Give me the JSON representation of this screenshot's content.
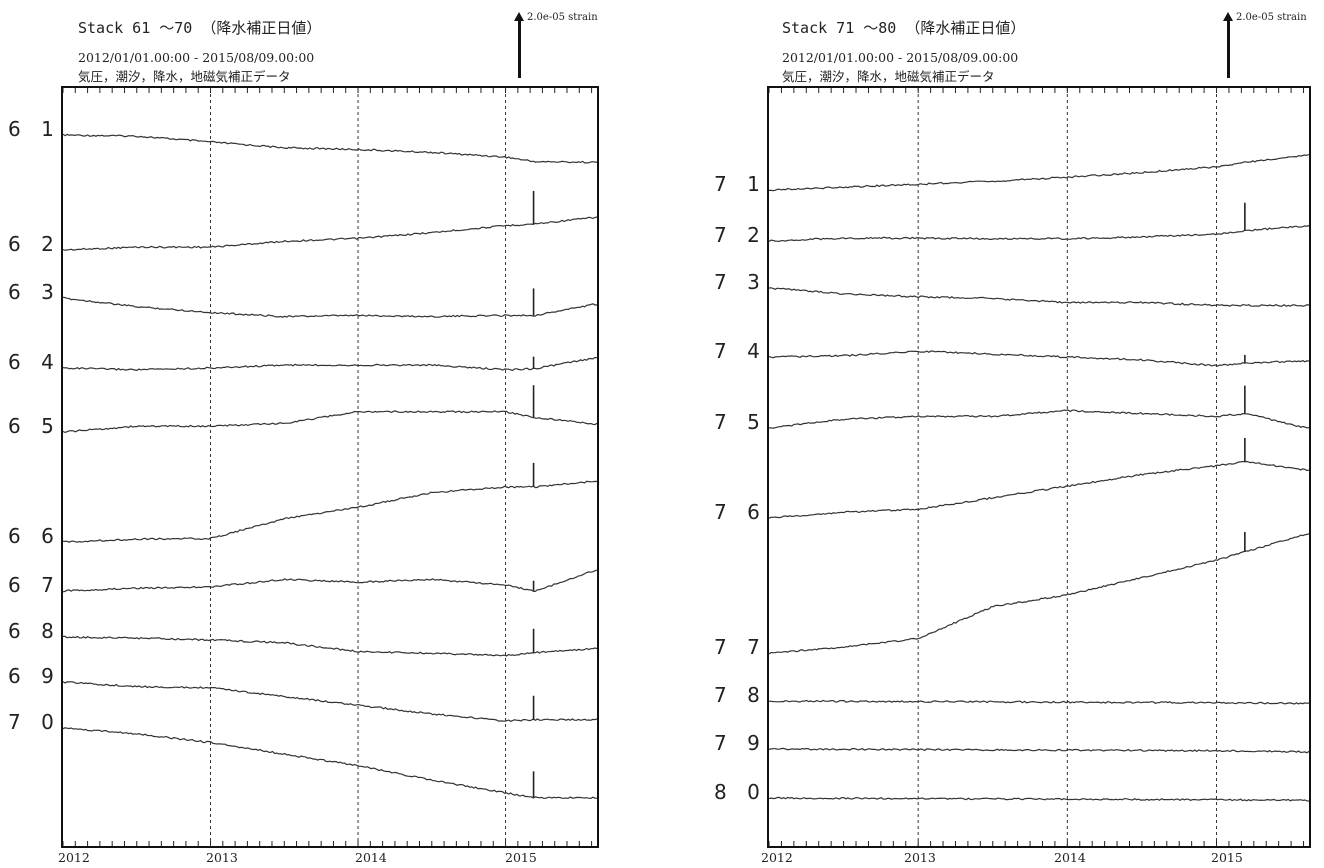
{
  "panels": [
    {
      "title": "Stack 61 ～70 （降水補正日値）",
      "period": "2012/01/01.00:00 - 2015/08/09.00:00",
      "corrections": "気圧，潮汐，降水，地磁気補正データ",
      "scale_label": "2.0e-05 strain",
      "years": [
        "2012",
        "2013",
        "2014",
        "2015"
      ]
    },
    {
      "title": "Stack 71 ～80 （降水補正日値）",
      "period": "2012/01/01.00:00 - 2015/08/09.00:00",
      "corrections": "気圧，潮汐，降水，地磁気補正データ",
      "scale_label": "2.0e-05 strain",
      "years": [
        "2012",
        "2013",
        "2014",
        "2015"
      ]
    }
  ],
  "chart_data": [
    {
      "type": "line",
      "title": "Stack 61 ～70 （降水補正日値）",
      "x_range": [
        "2012-01-01",
        "2015-08-09"
      ],
      "x_ticks": [
        "2012",
        "2013",
        "2014",
        "2015"
      ],
      "grid": "vertical dashed lines at year boundaries",
      "scale_bar": "2.0e-05 strain",
      "y_units": "trace offset in scale-bar units (1.0 = 2.0e-05 strain); traces offset vertically",
      "series": [
        {
          "name": "6 1",
          "x": [
            2012.0,
            2012.5,
            2013.0,
            2013.5,
            2014.0,
            2014.5,
            2015.0,
            2015.2,
            2015.6
          ],
          "y": [
            0.0,
            -0.02,
            -0.12,
            -0.22,
            -0.25,
            -0.3,
            -0.38,
            -0.46,
            -0.47
          ]
        },
        {
          "name": "6 2",
          "x": [
            2012.0,
            2012.5,
            2013.0,
            2013.5,
            2014.0,
            2014.5,
            2015.0,
            2015.2,
            2015.6
          ],
          "y": [
            0.0,
            0.05,
            0.05,
            0.15,
            0.2,
            0.3,
            0.42,
            0.45,
            0.56
          ]
        },
        {
          "name": "6 3",
          "x": [
            2012.0,
            2012.5,
            2013.0,
            2013.5,
            2014.0,
            2014.5,
            2015.0,
            2015.2,
            2015.6
          ],
          "y": [
            0.0,
            -0.15,
            -0.25,
            -0.32,
            -0.3,
            -0.32,
            -0.3,
            -0.3,
            -0.11
          ]
        },
        {
          "name": "6 4",
          "x": [
            2012.0,
            2012.5,
            2013.0,
            2013.5,
            2014.0,
            2014.5,
            2015.0,
            2015.2,
            2015.6
          ],
          "y": [
            0.0,
            -0.03,
            0.0,
            0.05,
            0.05,
            0.05,
            -0.03,
            -0.01,
            0.17
          ]
        },
        {
          "name": "6 5",
          "x": [
            2012.0,
            2012.5,
            2013.0,
            2013.5,
            2014.0,
            2014.5,
            2015.0,
            2015.2,
            2015.6
          ],
          "y": [
            0.0,
            0.1,
            0.1,
            0.15,
            0.35,
            0.35,
            0.35,
            0.25,
            0.14
          ]
        },
        {
          "name": "6 6",
          "x": [
            2012.0,
            2012.5,
            2013.0,
            2013.5,
            2014.0,
            2014.5,
            2015.0,
            2015.2,
            2015.6
          ],
          "y": [
            0.0,
            0.05,
            0.06,
            0.4,
            0.6,
            0.85,
            0.95,
            0.95,
            1.05
          ]
        },
        {
          "name": "6 7",
          "x": [
            2012.0,
            2012.5,
            2013.0,
            2013.5,
            2014.0,
            2014.5,
            2015.0,
            2015.2,
            2015.6
          ],
          "y": [
            0.0,
            0.05,
            0.07,
            0.2,
            0.15,
            0.2,
            0.1,
            0.0,
            0.35
          ]
        },
        {
          "name": "6 8",
          "x": [
            2012.0,
            2012.5,
            2013.0,
            2013.5,
            2014.0,
            2014.5,
            2015.0,
            2015.2,
            2015.6
          ],
          "y": [
            0.0,
            -0.02,
            -0.05,
            -0.1,
            -0.25,
            -0.28,
            -0.32,
            -0.27,
            -0.2
          ]
        },
        {
          "name": "6 9",
          "x": [
            2012.0,
            2012.5,
            2013.0,
            2013.5,
            2014.0,
            2014.5,
            2015.0,
            2015.2,
            2015.6
          ],
          "y": [
            0.0,
            -0.08,
            -0.1,
            -0.25,
            -0.4,
            -0.55,
            -0.67,
            -0.65,
            -0.65
          ]
        },
        {
          "name": "7 0",
          "x": [
            2012.0,
            2012.5,
            2013.0,
            2013.5,
            2014.0,
            2014.5,
            2015.0,
            2015.2,
            2015.6
          ],
          "y": [
            0.0,
            -0.1,
            -0.25,
            -0.45,
            -0.65,
            -0.9,
            -1.12,
            -1.2,
            -1.2
          ]
        }
      ]
    },
    {
      "type": "line",
      "title": "Stack 71 ～80 （降水補正日値）",
      "x_range": [
        "2012-01-01",
        "2015-08-09"
      ],
      "x_ticks": [
        "2012",
        "2013",
        "2014",
        "2015"
      ],
      "grid": "vertical dashed lines at year boundaries",
      "scale_bar": "2.0e-05 strain",
      "y_units": "trace offset in scale-bar units (1.0 = 2.0e-05 strain); traces offset vertically",
      "series": [
        {
          "name": "7 1",
          "x": [
            2012.0,
            2012.5,
            2013.0,
            2013.5,
            2014.0,
            2014.5,
            2015.0,
            2015.2,
            2015.6
          ],
          "y": [
            0.0,
            0.05,
            0.1,
            0.15,
            0.22,
            0.3,
            0.4,
            0.48,
            0.6
          ]
        },
        {
          "name": "7 2",
          "x": [
            2012.0,
            2012.5,
            2013.0,
            2013.5,
            2014.0,
            2014.5,
            2015.0,
            2015.2,
            2015.6
          ],
          "y": [
            0.0,
            0.05,
            0.05,
            0.04,
            0.04,
            0.07,
            0.12,
            0.18,
            0.26
          ]
        },
        {
          "name": "7 3",
          "x": [
            2012.0,
            2012.5,
            2013.0,
            2013.5,
            2014.0,
            2014.5,
            2015.0,
            2015.2,
            2015.6
          ],
          "y": [
            0.0,
            -0.1,
            -0.15,
            -0.18,
            -0.25,
            -0.25,
            -0.3,
            -0.3,
            -0.3
          ]
        },
        {
          "name": "7 4",
          "x": [
            2012.0,
            2012.5,
            2013.0,
            2013.5,
            2014.0,
            2014.5,
            2015.0,
            2015.2,
            2015.6
          ],
          "y": [
            0.0,
            0.02,
            0.1,
            0.05,
            0.0,
            -0.05,
            -0.15,
            -0.1,
            -0.07
          ]
        },
        {
          "name": "7 5",
          "x": [
            2012.0,
            2012.5,
            2013.0,
            2013.5,
            2014.0,
            2014.5,
            2015.0,
            2015.2,
            2015.6
          ],
          "y": [
            0.0,
            0.15,
            0.2,
            0.2,
            0.3,
            0.25,
            0.2,
            0.25,
            0.0
          ]
        },
        {
          "name": "7 6",
          "x": [
            2012.0,
            2012.5,
            2013.0,
            2013.5,
            2014.0,
            2014.5,
            2015.0,
            2015.2,
            2015.6
          ],
          "y": [
            0.0,
            0.1,
            0.15,
            0.35,
            0.55,
            0.75,
            0.9,
            0.97,
            0.83
          ]
        },
        {
          "name": "7 7",
          "x": [
            2012.0,
            2012.5,
            2013.0,
            2013.5,
            2014.0,
            2014.5,
            2015.0,
            2015.2,
            2015.6
          ],
          "y": [
            0.0,
            0.1,
            0.25,
            0.8,
            1.0,
            1.3,
            1.6,
            1.75,
            2.05
          ]
        },
        {
          "name": "7 8",
          "x": [
            2012.0,
            2013.0,
            2014.0,
            2015.0,
            2015.6
          ],
          "y": [
            0.0,
            -0.01,
            -0.02,
            -0.03,
            -0.04
          ]
        },
        {
          "name": "7 9",
          "x": [
            2012.0,
            2013.0,
            2014.0,
            2015.0,
            2015.6
          ],
          "y": [
            0.0,
            -0.01,
            -0.02,
            -0.03,
            -0.05
          ]
        },
        {
          "name": "8 0",
          "x": [
            2012.0,
            2013.0,
            2014.0,
            2015.0,
            2015.6
          ],
          "y": [
            0.0,
            -0.01,
            -0.02,
            -0.03,
            -0.04
          ]
        }
      ]
    }
  ]
}
